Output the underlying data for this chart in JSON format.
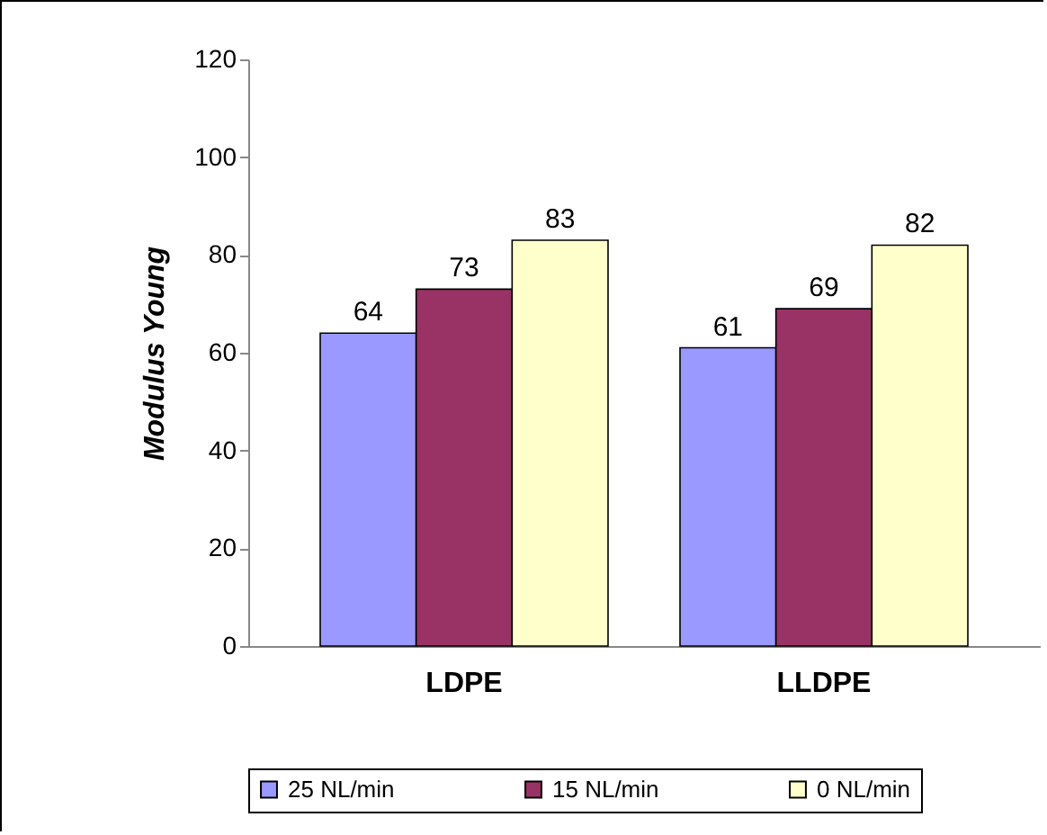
{
  "chart_data": {
    "type": "bar",
    "ylabel": "Modulus Young",
    "categories": [
      "LDPE",
      "LLDPE"
    ],
    "series": [
      {
        "name": "25 NL/min",
        "color": "#9999ff",
        "values": [
          64,
          61
        ]
      },
      {
        "name": "15 NL/min",
        "color": "#993366",
        "values": [
          73,
          69
        ]
      },
      {
        "name": "0 NL/min",
        "color": "#ffffcc",
        "values": [
          83,
          82
        ]
      }
    ],
    "ylim": [
      0,
      120
    ],
    "yticks": [
      0,
      20,
      40,
      60,
      80,
      100,
      120
    ],
    "grid": false,
    "legend": "bottom",
    "data_labels": true
  }
}
